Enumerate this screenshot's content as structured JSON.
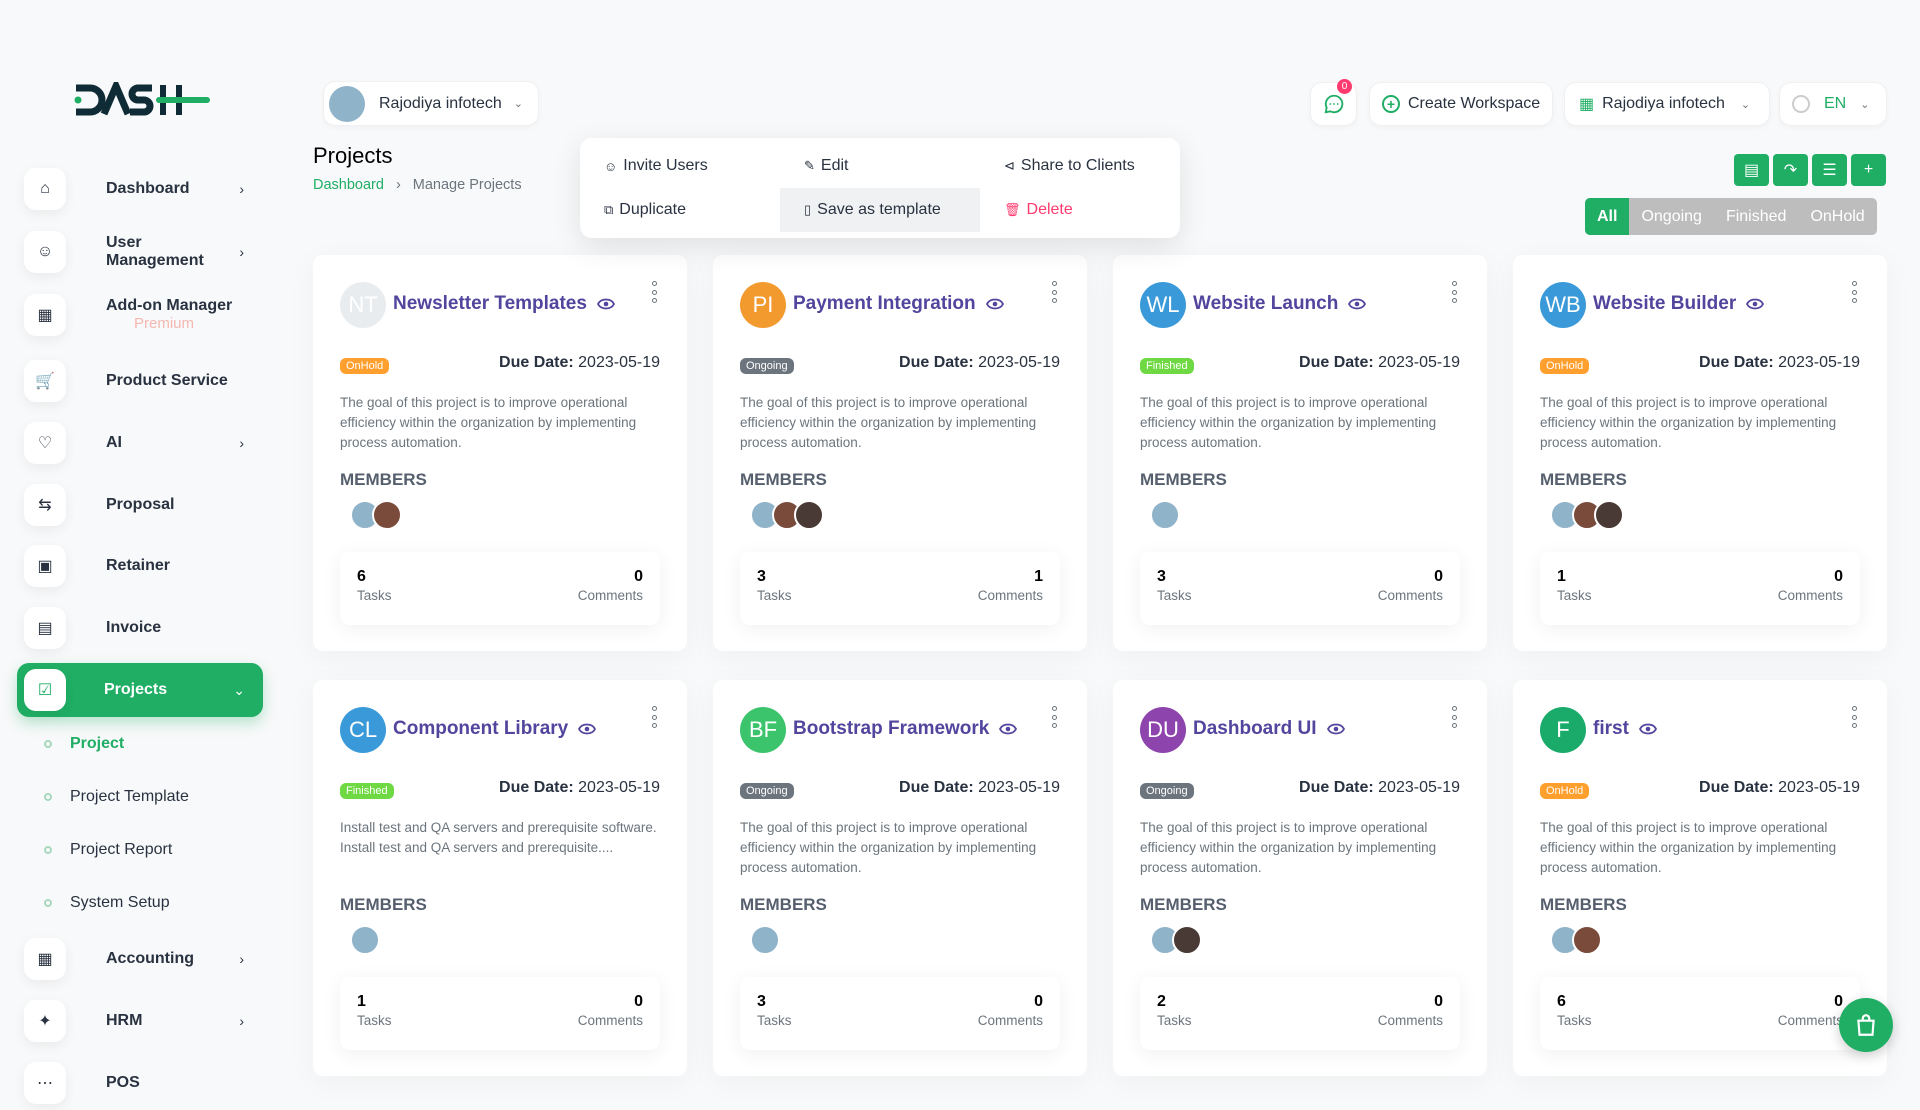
{
  "brand": {
    "logo_text": "DASH",
    "accent": "#1fae64"
  },
  "sidebar": {
    "items": [
      {
        "label": "Dashboard",
        "icon": "home-icon",
        "chevron": true
      },
      {
        "label": "User Management",
        "icon": "users-icon",
        "chevron": true
      },
      {
        "label": "Add-on Manager",
        "icon": "apps-icon",
        "chevron": false,
        "sub": "Premium"
      },
      {
        "label": "Product Service",
        "icon": "cart-icon",
        "chevron": false
      },
      {
        "label": "AI",
        "icon": "ai-icon",
        "chevron": true
      },
      {
        "label": "Proposal",
        "icon": "proposal-icon",
        "chevron": false
      },
      {
        "label": "Retainer",
        "icon": "retainer-icon",
        "chevron": false
      },
      {
        "label": "Invoice",
        "icon": "invoice-icon",
        "chevron": false
      },
      {
        "label": "Projects",
        "icon": "projects-icon",
        "chevron": true,
        "active": true
      }
    ],
    "subitems": [
      {
        "label": "Project",
        "active": true
      },
      {
        "label": "Project Template"
      },
      {
        "label": "Project Report"
      },
      {
        "label": "System Setup"
      }
    ],
    "after": [
      {
        "label": "Accounting",
        "icon": "accounting-icon",
        "chevron": true
      },
      {
        "label": "HRM",
        "icon": "hrm-icon",
        "chevron": true
      },
      {
        "label": "POS",
        "icon": "pos-icon",
        "chevron": false
      }
    ]
  },
  "topbar": {
    "workspace": "Rajodiya infotech",
    "notification_count": "0",
    "create_workspace": "Create Workspace",
    "company": "Rajodiya infotech",
    "language": "EN"
  },
  "page": {
    "title": "Projects",
    "breadcrumb": [
      "Dashboard",
      "Manage Projects"
    ],
    "tabs": [
      "All",
      "Ongoing",
      "Finished",
      "OnHold"
    ],
    "active_tab": "All"
  },
  "labels": {
    "due": "Due Date:",
    "members": "MEMBERS",
    "tasks": "Tasks",
    "comments": "Comments"
  },
  "status_colors": {
    "OnHold": "#ff9f2e",
    "Ongoing": "#6c757d",
    "Finished": "#6fd943"
  },
  "projects": [
    {
      "initials": "NT",
      "name": "Newsletter Templates",
      "color": "#e9ecef",
      "status": "OnHold",
      "due": "2023-05-19",
      "desc": "The goal of this project is to improve operational efficiency within the organization by implementing process automation.",
      "members": [
        "company",
        "woman1"
      ],
      "tasks": "6",
      "comments": "0"
    },
    {
      "initials": "PI",
      "name": "Payment Integration",
      "color": "#f29a2e",
      "status": "Ongoing",
      "due": "2023-05-19",
      "desc": "The goal of this project is to improve operational efficiency within the organization by implementing process automation.",
      "members": [
        "company",
        "woman1",
        "woman2"
      ],
      "tasks": "3",
      "comments": "1"
    },
    {
      "initials": "WL",
      "name": "Website Launch",
      "color": "#3a9ad9",
      "status": "Finished",
      "due": "2023-05-19",
      "desc": "The goal of this project is to improve operational efficiency within the organization by implementing process automation.",
      "members": [
        "company"
      ],
      "tasks": "3",
      "comments": "0"
    },
    {
      "initials": "WB",
      "name": "Website Builder",
      "color": "#3a9ad9",
      "status": "OnHold",
      "due": "2023-05-19",
      "desc": "The goal of this project is to improve operational efficiency within the organization by implementing process automation.",
      "members": [
        "company",
        "woman1",
        "woman2"
      ],
      "tasks": "1",
      "comments": "0"
    },
    {
      "initials": "CL",
      "name": "Component Library",
      "color": "#3a9ad9",
      "status": "Finished",
      "due": "2023-05-19",
      "desc": "Install test and QA servers and prerequisite software. Install test and QA servers and prerequisite....",
      "members": [
        "company"
      ],
      "tasks": "1",
      "comments": "0"
    },
    {
      "initials": "BF",
      "name": "Bootstrap Framework",
      "color": "#3cc46c",
      "status": "Ongoing",
      "due": "2023-05-19",
      "desc": "The goal of this project is to improve operational efficiency within the organization by implementing process automation.",
      "members": [
        "company"
      ],
      "tasks": "3",
      "comments": "0"
    },
    {
      "initials": "DU",
      "name": "Dashboard UI",
      "color": "#8e44ad",
      "status": "Ongoing",
      "due": "2023-05-19",
      "desc": "The goal of this project is to improve operational efficiency within the organization by implementing process automation.",
      "members": [
        "company",
        "woman2"
      ],
      "tasks": "2",
      "comments": "0"
    },
    {
      "initials": "F",
      "name": "first",
      "color": "#1aab6b",
      "status": "OnHold",
      "due": "2023-05-19",
      "desc": "The goal of this project is to improve operational efficiency within the organization by implementing process automation.",
      "members": [
        "company",
        "woman1"
      ],
      "tasks": "6",
      "comments": "0"
    }
  ],
  "dropdown": [
    {
      "label": "Invite Users",
      "icon": "invite-user-icon"
    },
    {
      "label": "Edit",
      "icon": "pencil-icon"
    },
    {
      "label": "Share to Clients",
      "icon": "share-icon"
    },
    {
      "label": "Duplicate",
      "icon": "copy-icon"
    },
    {
      "label": "Save as template",
      "icon": "bookmark-icon",
      "hover": true
    },
    {
      "label": "Delete",
      "icon": "trash-icon",
      "danger": true
    }
  ]
}
